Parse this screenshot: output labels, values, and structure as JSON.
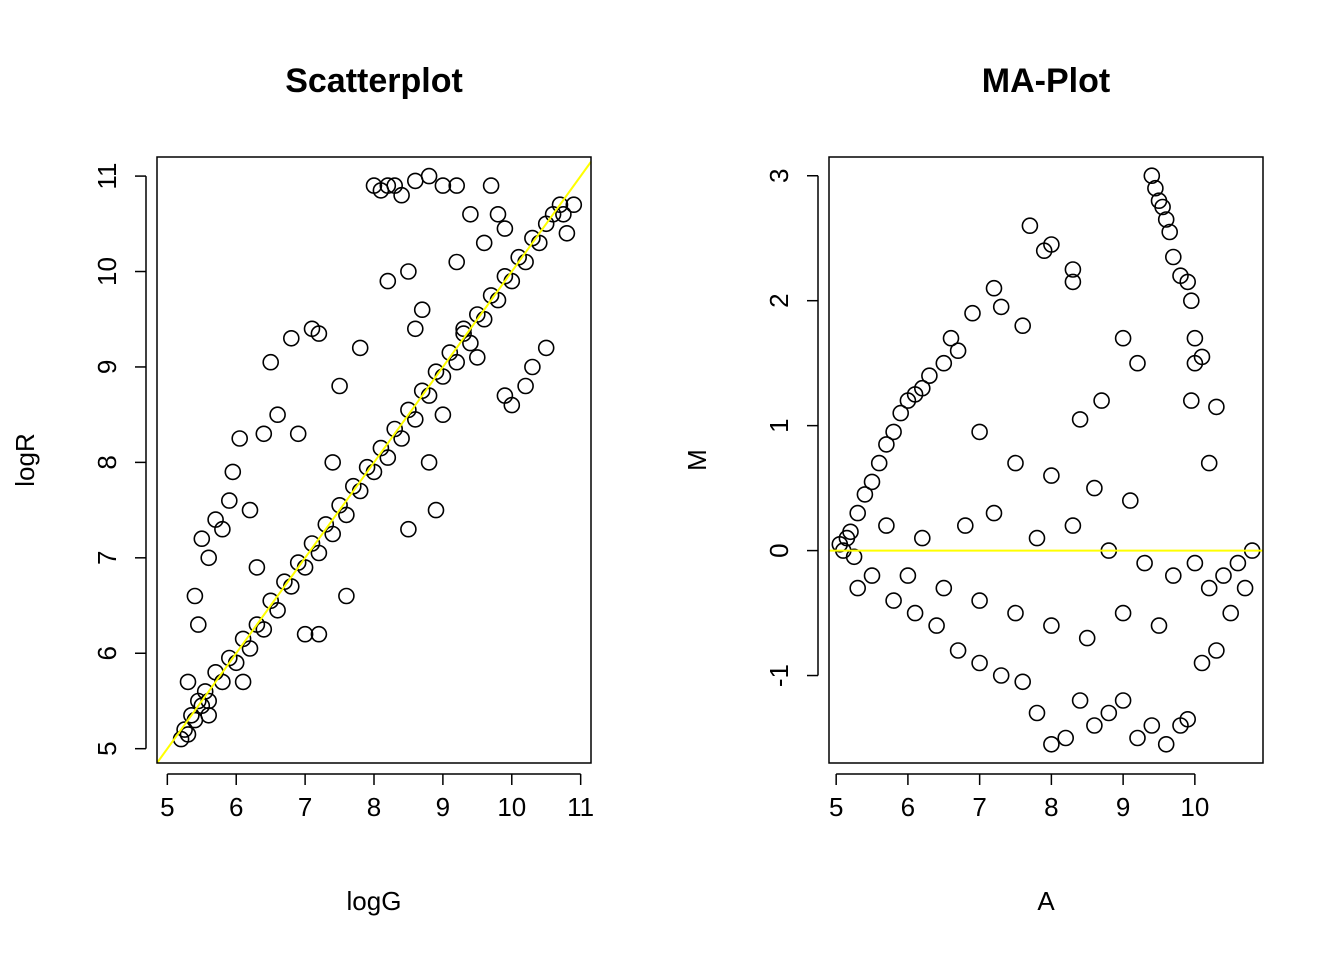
{
  "colors": {
    "points": "#000000",
    "reference_line": "#ffff00",
    "background": "#ffffff"
  },
  "chart_data": [
    {
      "type": "scatter",
      "title": "Scatterplot",
      "xlabel": "logG",
      "ylabel": "logR",
      "xlim": [
        4.85,
        11.15
      ],
      "ylim": [
        4.85,
        11.2
      ],
      "xticks": [
        5,
        6,
        7,
        8,
        9,
        10,
        11
      ],
      "yticks": [
        5,
        6,
        7,
        8,
        9,
        10,
        11
      ],
      "grid": false,
      "legend": "none",
      "marker": "open circle",
      "reference_line": {
        "kind": "abline",
        "intercept": 0,
        "slope": 1,
        "color": "#ffff00"
      },
      "points": [
        [
          5.2,
          5.1
        ],
        [
          5.25,
          5.2
        ],
        [
          5.3,
          5.15
        ],
        [
          5.35,
          5.35
        ],
        [
          5.4,
          5.3
        ],
        [
          5.45,
          5.5
        ],
        [
          5.5,
          5.45
        ],
        [
          5.55,
          5.6
        ],
        [
          5.6,
          5.5
        ],
        [
          5.7,
          5.8
        ],
        [
          5.8,
          5.7
        ],
        [
          5.9,
          5.95
        ],
        [
          6.0,
          5.9
        ],
        [
          6.1,
          6.15
        ],
        [
          6.2,
          6.05
        ],
        [
          6.3,
          6.3
        ],
        [
          6.4,
          6.25
        ],
        [
          6.5,
          6.55
        ],
        [
          6.6,
          6.45
        ],
        [
          6.7,
          6.75
        ],
        [
          6.8,
          6.7
        ],
        [
          6.9,
          6.95
        ],
        [
          7.0,
          6.9
        ],
        [
          7.1,
          7.15
        ],
        [
          7.2,
          7.05
        ],
        [
          7.3,
          7.35
        ],
        [
          7.4,
          7.25
        ],
        [
          7.5,
          7.55
        ],
        [
          7.6,
          7.45
        ],
        [
          7.7,
          7.75
        ],
        [
          7.8,
          7.7
        ],
        [
          7.9,
          7.95
        ],
        [
          8.0,
          7.9
        ],
        [
          8.1,
          8.15
        ],
        [
          8.2,
          8.05
        ],
        [
          8.3,
          8.35
        ],
        [
          8.4,
          8.25
        ],
        [
          8.5,
          8.55
        ],
        [
          8.6,
          8.45
        ],
        [
          8.7,
          8.75
        ],
        [
          8.8,
          8.7
        ],
        [
          8.9,
          8.95
        ],
        [
          9.0,
          8.9
        ],
        [
          9.1,
          9.15
        ],
        [
          9.2,
          9.05
        ],
        [
          9.3,
          9.35
        ],
        [
          9.4,
          9.25
        ],
        [
          9.5,
          9.55
        ],
        [
          9.6,
          9.5
        ],
        [
          9.7,
          9.75
        ],
        [
          9.8,
          9.7
        ],
        [
          9.9,
          9.95
        ],
        [
          10.0,
          9.9
        ],
        [
          10.1,
          10.15
        ],
        [
          10.2,
          10.1
        ],
        [
          10.3,
          10.35
        ],
        [
          10.4,
          10.3
        ],
        [
          10.5,
          10.5
        ],
        [
          10.6,
          10.6
        ],
        [
          10.7,
          10.7
        ],
        [
          5.4,
          6.6
        ],
        [
          5.5,
          7.2
        ],
        [
          5.6,
          7.0
        ],
        [
          5.7,
          7.4
        ],
        [
          5.8,
          7.3
        ],
        [
          5.9,
          7.6
        ],
        [
          6.05,
          8.25
        ],
        [
          5.95,
          7.9
        ],
        [
          6.4,
          8.3
        ],
        [
          6.6,
          8.5
        ],
        [
          6.5,
          9.05
        ],
        [
          6.8,
          9.3
        ],
        [
          7.1,
          9.4
        ],
        [
          7.2,
          9.35
        ],
        [
          6.9,
          8.3
        ],
        [
          7.5,
          8.8
        ],
        [
          7.8,
          9.2
        ],
        [
          8.2,
          9.9
        ],
        [
          8.5,
          10.0
        ],
        [
          8.7,
          9.6
        ],
        [
          8.0,
          10.9
        ],
        [
          8.1,
          10.85
        ],
        [
          8.2,
          10.9
        ],
        [
          8.3,
          10.9
        ],
        [
          8.4,
          10.8
        ],
        [
          8.6,
          10.95
        ],
        [
          8.8,
          11.0
        ],
        [
          9.0,
          10.9
        ],
        [
          9.2,
          10.9
        ],
        [
          9.7,
          10.9
        ],
        [
          9.4,
          10.6
        ],
        [
          9.6,
          10.3
        ],
        [
          9.8,
          10.6
        ],
        [
          9.9,
          10.45
        ],
        [
          9.3,
          9.4
        ],
        [
          9.5,
          9.1
        ],
        [
          9.0,
          8.5
        ],
        [
          8.8,
          8.0
        ],
        [
          8.5,
          7.3
        ],
        [
          8.9,
          7.5
        ],
        [
          7.0,
          6.2
        ],
        [
          7.6,
          6.6
        ],
        [
          7.2,
          6.2
        ],
        [
          6.1,
          5.7
        ],
        [
          5.6,
          5.35
        ],
        [
          9.9,
          8.7
        ],
        [
          10.3,
          9.0
        ],
        [
          10.5,
          9.2
        ],
        [
          10.2,
          8.8
        ],
        [
          10.0,
          8.6
        ],
        [
          10.8,
          10.4
        ],
        [
          10.9,
          10.7
        ],
        [
          10.75,
          10.6
        ],
        [
          6.2,
          7.5
        ],
        [
          6.3,
          6.9
        ],
        [
          5.45,
          6.3
        ],
        [
          5.3,
          5.7
        ],
        [
          7.4,
          8.0
        ],
        [
          8.6,
          9.4
        ],
        [
          9.2,
          10.1
        ]
      ]
    },
    {
      "type": "scatter",
      "title": "MA-Plot",
      "xlabel": "A",
      "ylabel": "M",
      "xlim": [
        4.9,
        10.95
      ],
      "ylim": [
        -1.7,
        3.15
      ],
      "xticks": [
        5,
        6,
        7,
        8,
        9,
        10
      ],
      "yticks": [
        -1,
        0,
        1,
        2,
        3
      ],
      "grid": false,
      "legend": "none",
      "marker": "open circle",
      "reference_line": {
        "kind": "hline",
        "y": 0,
        "color": "#ffff00"
      },
      "points": [
        [
          5.1,
          0.0
        ],
        [
          5.2,
          0.15
        ],
        [
          5.3,
          0.3
        ],
        [
          5.4,
          0.45
        ],
        [
          5.5,
          0.55
        ],
        [
          5.6,
          0.7
        ],
        [
          5.7,
          0.85
        ],
        [
          5.8,
          0.95
        ],
        [
          5.9,
          1.1
        ],
        [
          6.0,
          1.2
        ],
        [
          6.1,
          1.25
        ],
        [
          6.2,
          1.3
        ],
        [
          6.3,
          1.4
        ],
        [
          6.5,
          1.5
        ],
        [
          6.6,
          1.7
        ],
        [
          6.7,
          1.6
        ],
        [
          6.9,
          1.9
        ],
        [
          7.2,
          2.1
        ],
        [
          7.3,
          1.95
        ],
        [
          7.6,
          1.8
        ],
        [
          7.7,
          2.6
        ],
        [
          7.9,
          2.4
        ],
        [
          8.0,
          2.45
        ],
        [
          8.3,
          2.25
        ],
        [
          8.3,
          2.15
        ],
        [
          9.4,
          3.0
        ],
        [
          9.45,
          2.9
        ],
        [
          9.5,
          2.8
        ],
        [
          9.55,
          2.75
        ],
        [
          9.6,
          2.65
        ],
        [
          9.65,
          2.55
        ],
        [
          9.7,
          2.35
        ],
        [
          9.8,
          2.2
        ],
        [
          9.9,
          2.15
        ],
        [
          9.95,
          2.0
        ],
        [
          10.0,
          1.7
        ],
        [
          10.1,
          1.55
        ],
        [
          10.0,
          1.5
        ],
        [
          9.95,
          1.2
        ],
        [
          10.3,
          1.15
        ],
        [
          10.2,
          0.7
        ],
        [
          9.0,
          1.7
        ],
        [
          9.2,
          1.5
        ],
        [
          8.7,
          1.2
        ],
        [
          8.4,
          1.05
        ],
        [
          7.0,
          0.95
        ],
        [
          7.5,
          0.7
        ],
        [
          8.0,
          0.6
        ],
        [
          8.6,
          0.5
        ],
        [
          9.1,
          0.4
        ],
        [
          5.3,
          -0.3
        ],
        [
          5.5,
          -0.2
        ],
        [
          5.8,
          -0.4
        ],
        [
          6.1,
          -0.5
        ],
        [
          6.4,
          -0.6
        ],
        [
          6.7,
          -0.8
        ],
        [
          7.0,
          -0.9
        ],
        [
          7.3,
          -1.0
        ],
        [
          7.6,
          -1.05
        ],
        [
          7.8,
          -1.3
        ],
        [
          8.0,
          -1.55
        ],
        [
          8.2,
          -1.5
        ],
        [
          8.4,
          -1.2
        ],
        [
          8.6,
          -1.4
        ],
        [
          8.8,
          -1.3
        ],
        [
          9.0,
          -1.2
        ],
        [
          9.2,
          -1.5
        ],
        [
          9.4,
          -1.4
        ],
        [
          9.6,
          -1.55
        ],
        [
          9.8,
          -1.4
        ],
        [
          9.9,
          -1.35
        ],
        [
          10.1,
          -0.9
        ],
        [
          10.3,
          -0.8
        ],
        [
          10.5,
          -0.5
        ],
        [
          10.7,
          -0.3
        ],
        [
          10.8,
          0.0
        ],
        [
          10.6,
          -0.1
        ],
        [
          10.4,
          -0.2
        ],
        [
          10.2,
          -0.3
        ],
        [
          9.5,
          -0.6
        ],
        [
          9.0,
          -0.5
        ],
        [
          8.5,
          -0.7
        ],
        [
          8.0,
          -0.6
        ],
        [
          7.5,
          -0.5
        ],
        [
          7.0,
          -0.4
        ],
        [
          6.5,
          -0.3
        ],
        [
          6.0,
          -0.2
        ],
        [
          5.7,
          0.2
        ],
        [
          6.2,
          0.1
        ],
        [
          6.8,
          0.2
        ],
        [
          7.2,
          0.3
        ],
        [
          7.8,
          0.1
        ],
        [
          8.3,
          0.2
        ],
        [
          8.8,
          0.0
        ],
        [
          9.3,
          -0.1
        ],
        [
          9.7,
          -0.2
        ],
        [
          10.0,
          -0.1
        ],
        [
          5.25,
          -0.05
        ],
        [
          5.15,
          0.1
        ],
        [
          5.05,
          0.05
        ]
      ]
    }
  ]
}
